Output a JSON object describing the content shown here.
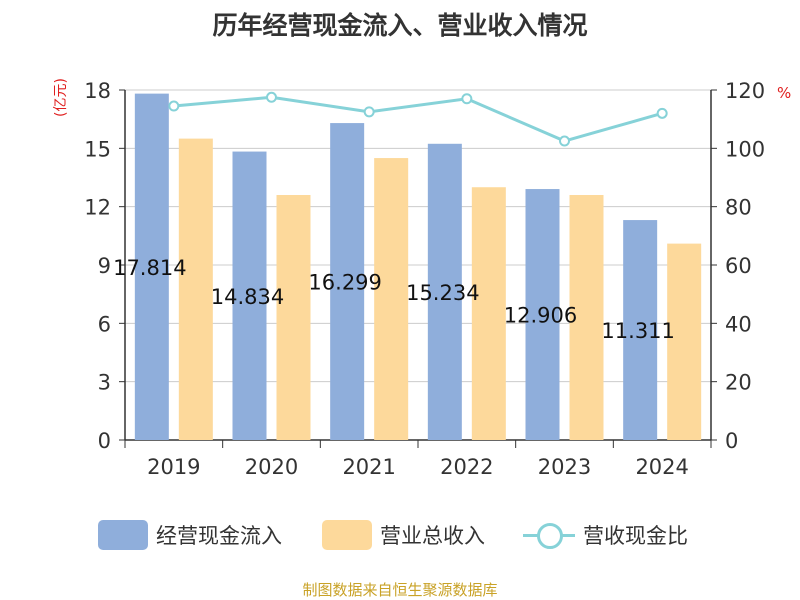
{
  "title": "历年经营现金流入、营业收入情况",
  "left_unit": "(亿元)",
  "right_unit": "%",
  "source": "制图数据来自恒生聚源数据库",
  "colors": {
    "cash_inflow": "#8faedb",
    "revenue": "#fdd99b",
    "ratio": "#86d2d8",
    "unit": "#e02020",
    "grid": "#cccccc",
    "axis": "#333333"
  },
  "legend": [
    {
      "label": "经营现金流入",
      "type": "bar"
    },
    {
      "label": "营业总收入",
      "type": "bar"
    },
    {
      "label": "营收现金比",
      "type": "line"
    }
  ],
  "chart_data": {
    "type": "bar",
    "categories": [
      "2019",
      "2020",
      "2021",
      "2022",
      "2023",
      "2024"
    ],
    "series": [
      {
        "name": "经营现金流入",
        "axis": "left",
        "type": "bar",
        "values": [
          17.814,
          14.834,
          16.299,
          15.234,
          12.906,
          11.311
        ],
        "labels": [
          "17.814",
          "14.834",
          "16.299",
          "15.234",
          "12.906",
          "11.311"
        ]
      },
      {
        "name": "营业总收入",
        "axis": "left",
        "type": "bar",
        "values": [
          15.5,
          12.6,
          14.5,
          13.0,
          12.6,
          10.1
        ]
      },
      {
        "name": "营收现金比",
        "axis": "right",
        "type": "line",
        "values": [
          114.5,
          117.5,
          112.5,
          117,
          102.5,
          112
        ]
      }
    ],
    "y_left": {
      "min": 0,
      "max": 18,
      "ticks": [
        0,
        3,
        6,
        9,
        12,
        15,
        18
      ]
    },
    "y_right": {
      "min": 0,
      "max": 120,
      "ticks": [
        0,
        20,
        40,
        60,
        80,
        100,
        120
      ]
    },
    "grid": true,
    "legend_position": "bottom"
  }
}
